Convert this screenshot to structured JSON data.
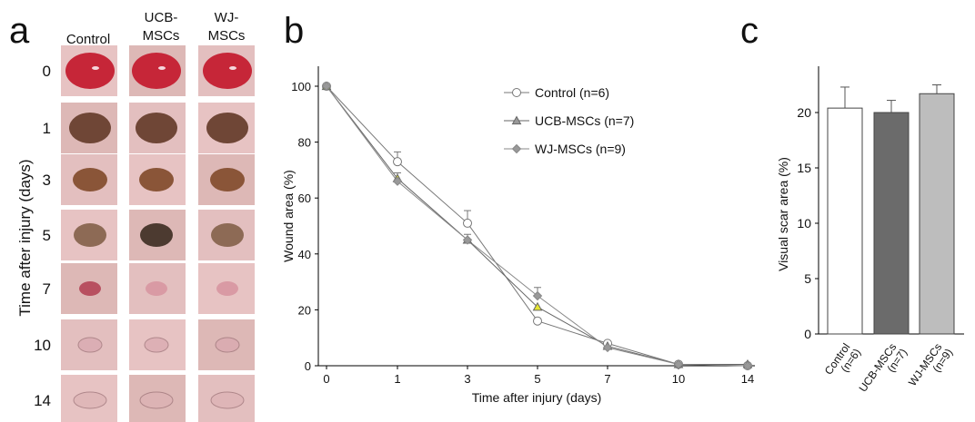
{
  "panels": {
    "a": "a",
    "b": "b",
    "c": "c"
  },
  "panel_a": {
    "column_headers": [
      "Control",
      "UCB-\nMSCs",
      "WJ-\nMSCs"
    ],
    "row_labels": [
      "0",
      "1",
      "3",
      "5",
      "7",
      "10",
      "14"
    ],
    "ylabel": "Time after injury (days)",
    "colors": {
      "skin": "#e4bcbc",
      "wound_fresh": "#c8283c",
      "scab": "#6a4030"
    }
  },
  "chart_data": [
    {
      "type": "line",
      "x": [
        0,
        1,
        3,
        5,
        7,
        10,
        14
      ],
      "xticks": [
        "0",
        "1",
        "3",
        "5",
        "7",
        "10",
        "14"
      ],
      "xlabel": "Time after injury (days)",
      "ylabel": "Wound area (%)",
      "ylim": [
        0,
        100
      ],
      "yticks": [
        "0",
        "20",
        "40",
        "60",
        "80",
        "100"
      ],
      "legend_position": "top-right",
      "series": [
        {
          "name": "Control (n=6)",
          "marker": "circle",
          "fill": "#ffffff",
          "stroke": "#777777",
          "values": [
            100,
            73,
            51,
            16,
            8,
            0.5,
            0
          ],
          "errors": [
            0,
            3.5,
            4.5,
            0,
            0,
            0,
            0
          ]
        },
        {
          "name": "UCB-MSCs (n=7)",
          "marker": "triangle",
          "fill": "#999999",
          "stroke": "#666666",
          "values": [
            100,
            67,
            45,
            21,
            7,
            0.5,
            0.5
          ],
          "errors": [
            0,
            2,
            2,
            0,
            0,
            0,
            0
          ]
        },
        {
          "name": "WJ-MSCs (n=9)",
          "marker": "diamond",
          "fill": "#999999",
          "stroke": "#888888",
          "values": [
            100,
            66,
            45,
            25,
            6.5,
            0.5,
            0
          ],
          "errors": [
            0,
            0,
            0,
            3,
            0,
            0,
            0
          ]
        }
      ]
    },
    {
      "type": "bar",
      "categories": [
        "Control\n(n=6)",
        "UCB-MSCs\n(n=7)",
        "WJ-MSCs\n(n=9)"
      ],
      "values": [
        20.4,
        20.0,
        21.7
      ],
      "errors": [
        1.9,
        1.1,
        0.8
      ],
      "colors": [
        "#ffffff",
        "#6b6b6b",
        "#bdbdbd"
      ],
      "ylabel": "Visual scar area (%)",
      "ylim": [
        0,
        25
      ],
      "yticks": [
        "0",
        "5",
        "10",
        "15",
        "20"
      ]
    }
  ]
}
